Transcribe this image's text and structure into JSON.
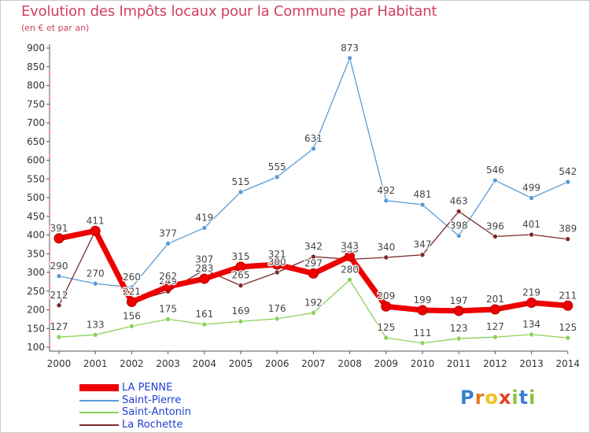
{
  "title": "Evolution des Impôts locaux pour la Commune par Habitant",
  "subtitle": "(en € et par an)",
  "brand": {
    "letters": [
      "P",
      "r",
      "o",
      "x",
      "i",
      "t",
      "i"
    ],
    "colors": [
      "#3a7fd0",
      "#e07a20",
      "#f0c020",
      "#e04020",
      "#8cc040",
      "#3a7fd0",
      "#8cc040"
    ]
  },
  "chart_data": {
    "type": "line",
    "title": "Evolution des Impôts locaux pour la Commune par Habitant",
    "ylabel": "(en € et par an)",
    "xlabel": "",
    "categories": [
      "2000",
      "2001",
      "2002",
      "2003",
      "2004",
      "2005",
      "2006",
      "2007",
      "2008",
      "2009",
      "2010",
      "2011",
      "2012",
      "2013",
      "2014"
    ],
    "y_ticks": [
      "100",
      "150",
      "200",
      "250",
      "300",
      "350",
      "400",
      "450",
      "500",
      "550",
      "600",
      "650",
      "700",
      "750",
      "800",
      "850",
      "900"
    ],
    "ylim": [
      100,
      900
    ],
    "grid": false,
    "legend_position": "bottom-left",
    "series": [
      {
        "name": "Saint-Pierre",
        "color": "#5b9bd5",
        "width": "thin",
        "values": [
          290,
          270,
          260,
          377,
          419,
          515,
          555,
          631,
          873,
          492,
          481,
          398,
          546,
          499,
          542
        ]
      },
      {
        "name": "Saint-Antonin",
        "color": "#8cd15a",
        "width": "thin",
        "values": [
          127,
          133,
          156,
          175,
          161,
          169,
          176,
          192,
          280,
          125,
          111,
          123,
          127,
          134,
          125
        ]
      },
      {
        "name": "La Rochette",
        "color": "#7a2a2a",
        "width": "thin",
        "values": [
          212,
          411,
          221,
          249,
          307,
          265,
          300,
          342,
          335,
          340,
          347,
          463,
          396,
          401,
          389
        ]
      },
      {
        "name": "LA PENNE",
        "color": "#ee0000",
        "width": "thick",
        "values": [
          391,
          411,
          221,
          262,
          283,
          315,
          321,
          297,
          343,
          209,
          199,
          197,
          201,
          219,
          211
        ]
      }
    ],
    "legend": [
      "LA PENNE",
      "Saint-Pierre",
      "Saint-Antonin",
      "La Rochette"
    ]
  }
}
